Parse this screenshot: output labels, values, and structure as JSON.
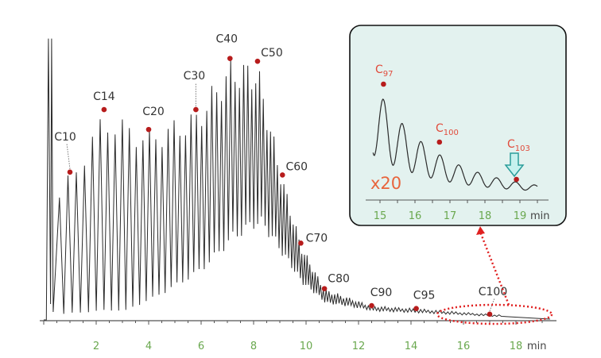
{
  "chart_data": {
    "type": "line",
    "title": "",
    "xlabel": "min",
    "ylabel": "",
    "xlim": [
      0,
      19
    ],
    "x_ticks": [
      "2",
      "4",
      "6",
      "8",
      "10",
      "12",
      "14",
      "16",
      "18"
    ],
    "x_unit": "min",
    "annotations": [
      {
        "label": "C10",
        "time": 1.0,
        "rel_height": 0.52
      },
      {
        "label": "C14",
        "time": 2.3,
        "rel_height": 0.74
      },
      {
        "label": "C20",
        "time": 4.0,
        "rel_height": 0.67
      },
      {
        "label": "C30",
        "time": 5.8,
        "rel_height": 0.74
      },
      {
        "label": "C40",
        "time": 7.1,
        "rel_height": 0.92
      },
      {
        "label": "C50",
        "time": 8.15,
        "rel_height": 0.91
      },
      {
        "label": "C60",
        "time": 9.1,
        "rel_height": 0.51
      },
      {
        "label": "C70",
        "time": 9.8,
        "rel_height": 0.27
      },
      {
        "label": "C80",
        "time": 10.7,
        "rel_height": 0.11
      },
      {
        "label": "C90",
        "time": 12.5,
        "rel_height": 0.05
      },
      {
        "label": "C95",
        "time": 14.2,
        "rel_height": 0.04
      },
      {
        "label": "C100",
        "time": 17.0,
        "rel_height": 0.02
      }
    ],
    "inset": {
      "zoom_label": "x20",
      "x_ticks": [
        "15",
        "16",
        "17",
        "18",
        "19"
      ],
      "x_unit": "min",
      "xlim": [
        15,
        19.5
      ],
      "annotations": [
        {
          "base": "C",
          "sub": "97",
          "time": 15.1
        },
        {
          "base": "C",
          "sub": "100",
          "time": 16.7
        },
        {
          "base": "C",
          "sub": "103",
          "time": 18.9
        }
      ]
    }
  },
  "colors": {
    "trace": "#2b2b2b",
    "marker": "#b71c1c",
    "tick_text": "#6aa84f",
    "highlight": "#e02020",
    "inset_bg": "#e3f2ef",
    "arrow_fill": "#c6f1ee",
    "arrow_stroke": "#2a9d9a"
  }
}
